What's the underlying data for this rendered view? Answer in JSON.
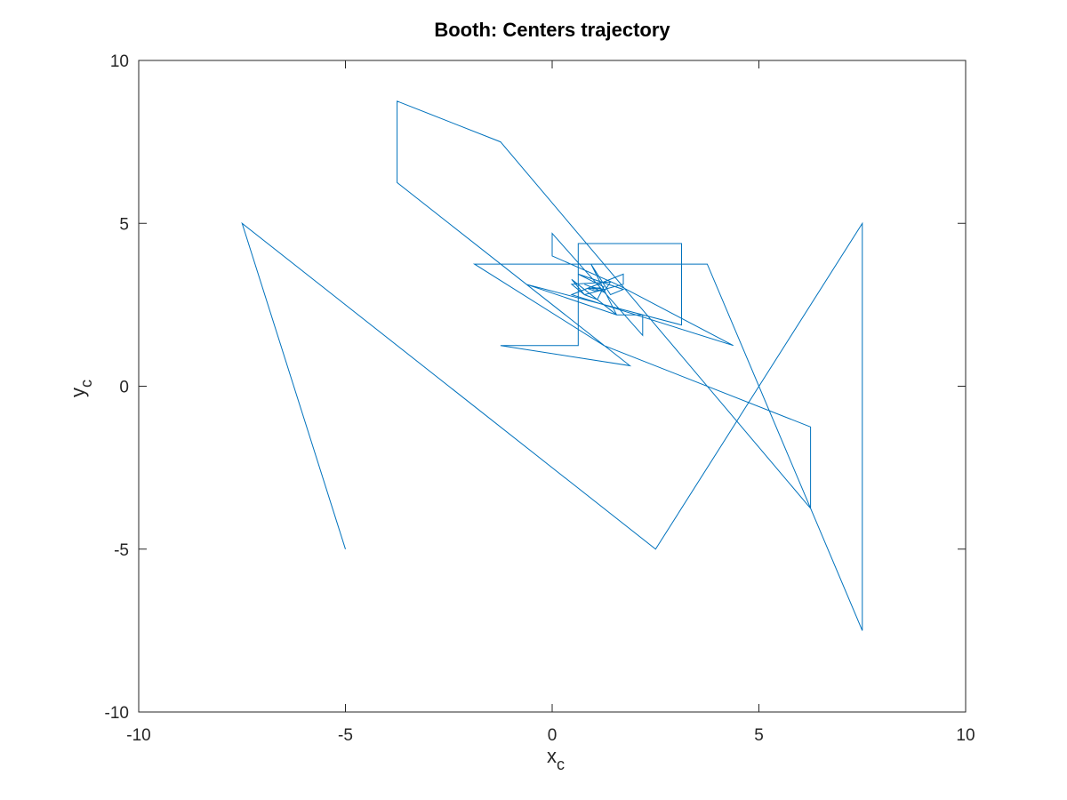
{
  "chart_data": {
    "type": "line",
    "title": "Booth: Centers trajectory",
    "xlabel": {
      "main": "x",
      "sub": "c"
    },
    "ylabel": {
      "main": "y",
      "sub": "c"
    },
    "xlim": [
      -10,
      10
    ],
    "ylim": [
      -10,
      10
    ],
    "xticks": [
      -10,
      -5,
      0,
      5,
      10
    ],
    "yticks": [
      -10,
      -5,
      0,
      5,
      10
    ],
    "xtick_labels": [
      "-10",
      "-5",
      "0",
      "5",
      "10"
    ],
    "ytick_labels": [
      "-10",
      "-5",
      "0",
      "5",
      "10"
    ],
    "grid": false,
    "series": [
      {
        "name": "centers trajectory",
        "color": "#0072BD",
        "x": [
          -5.0,
          -7.5,
          2.5,
          7.5,
          7.5,
          3.75,
          3.75,
          -1.88,
          1.25,
          6.25,
          6.25,
          -1.25,
          -3.75,
          -3.75,
          1.88,
          -1.25,
          0.63,
          0.63,
          3.13,
          3.13,
          -0.63,
          1.56,
          2.19,
          2.19,
          0.0,
          0.0,
          1.56,
          4.38,
          0.47,
          1.72,
          1.72,
          0.78,
          0.47,
          1.56,
          0.94,
          1.41,
          1.72,
          0.63,
          1.25,
          1.09,
          0.78,
          0.47,
          1.41,
          1.25,
          0.78,
          1.09,
          0.94,
          1.25,
          1.02,
          0.86,
          1.17,
          0.98,
          1.0
        ],
        "y": [
          -5.0,
          5.0,
          -5.0,
          5.0,
          -7.5,
          3.75,
          3.75,
          3.75,
          1.25,
          -1.25,
          -3.75,
          7.5,
          8.75,
          6.25,
          0.63,
          1.25,
          1.25,
          4.38,
          4.38,
          1.88,
          3.13,
          2.19,
          2.19,
          1.56,
          4.69,
          4.0,
          3.13,
          1.25,
          2.81,
          3.44,
          3.13,
          2.81,
          3.28,
          2.19,
          3.75,
          2.81,
          2.97,
          3.44,
          3.05,
          2.66,
          2.81,
          3.13,
          3.2,
          2.89,
          3.13,
          2.97,
          3.05,
          2.97,
          2.93,
          3.0,
          3.02,
          2.98,
          3.0
        ]
      }
    ]
  }
}
